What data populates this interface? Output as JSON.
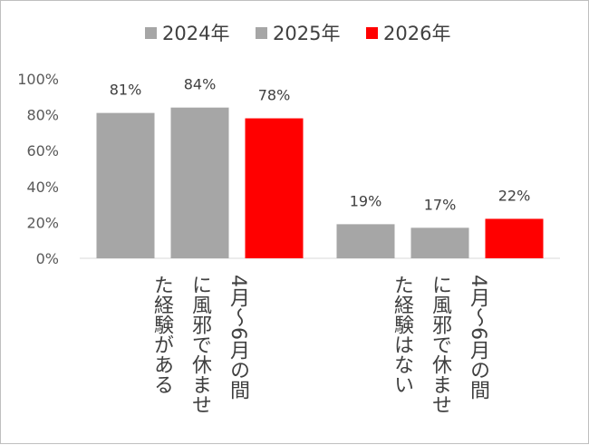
{
  "chart_data": {
    "type": "bar",
    "title": "",
    "xlabel": "",
    "ylabel": "",
    "ylim": [
      0,
      100
    ],
    "yticks": [
      "0%",
      "20%",
      "40%",
      "60%",
      "80%",
      "100%"
    ],
    "grid": false,
    "legend_position": "top",
    "categories": [
      [
        "4月～6月の間",
        "に風邪で休ませ",
        "た経験がある"
      ],
      [
        "4月～6月の間",
        "に風邪で休ませ",
        "た経験はない"
      ]
    ],
    "series": [
      {
        "name": "2024年",
        "color": "#A6A6A6",
        "values": [
          81,
          19
        ],
        "labels": [
          "81%",
          "19%"
        ]
      },
      {
        "name": "2025年",
        "color": "#A6A6A6",
        "values": [
          84,
          17
        ],
        "labels": [
          "84%",
          "17%"
        ]
      },
      {
        "name": "2026年",
        "color": "#FF0000",
        "values": [
          78,
          22
        ],
        "labels": [
          "78%",
          "22%"
        ]
      }
    ]
  }
}
